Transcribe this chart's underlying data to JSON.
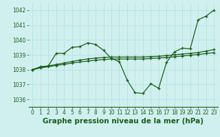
{
  "xlabel": "Graphe pression niveau de la mer (hPa)",
  "bg_color": "#d0f0f0",
  "grid_color": "#b8e0e0",
  "line_color": "#1a5c1a",
  "x": [
    0,
    1,
    2,
    3,
    4,
    5,
    6,
    7,
    8,
    9,
    10,
    11,
    12,
    13,
    14,
    15,
    16,
    17,
    18,
    19,
    20,
    21,
    22,
    23
  ],
  "series1": [
    1038.0,
    1038.2,
    1038.25,
    1039.1,
    1039.1,
    1039.5,
    1039.55,
    1039.8,
    1039.7,
    1039.3,
    1038.75,
    1038.55,
    1037.3,
    1036.45,
    1036.4,
    1037.05,
    1036.75,
    1038.5,
    1039.2,
    1039.45,
    1039.4,
    1041.35,
    1041.6,
    1042.0
  ],
  "series2": [
    1038.0,
    1038.15,
    1038.25,
    1038.35,
    1038.45,
    1038.55,
    1038.65,
    1038.72,
    1038.78,
    1038.82,
    1038.85,
    1038.85,
    1038.85,
    1038.85,
    1038.85,
    1038.88,
    1038.9,
    1038.95,
    1039.0,
    1039.05,
    1039.1,
    1039.15,
    1039.25,
    1039.35
  ],
  "series3": [
    1038.0,
    1038.12,
    1038.2,
    1038.28,
    1038.36,
    1038.44,
    1038.52,
    1038.58,
    1038.64,
    1038.68,
    1038.72,
    1038.72,
    1038.72,
    1038.72,
    1038.72,
    1038.75,
    1038.78,
    1038.82,
    1038.87,
    1038.92,
    1038.97,
    1039.02,
    1039.08,
    1039.15
  ],
  "ylim": [
    1035.5,
    1042.5
  ],
  "yticks": [
    1036,
    1037,
    1038,
    1039,
    1040,
    1041,
    1042
  ],
  "xticks": [
    0,
    1,
    2,
    3,
    4,
    5,
    6,
    7,
    8,
    9,
    10,
    11,
    12,
    13,
    14,
    15,
    16,
    17,
    18,
    19,
    20,
    21,
    22,
    23
  ],
  "marker": "+",
  "markersize": 3.5,
  "linewidth": 0.9,
  "xlabel_fontsize": 7.5,
  "tick_fontsize": 5.5,
  "xlabel_color": "#1a5c1a",
  "tick_color": "#1a5c1a",
  "label_bg": "#1a5c1a"
}
